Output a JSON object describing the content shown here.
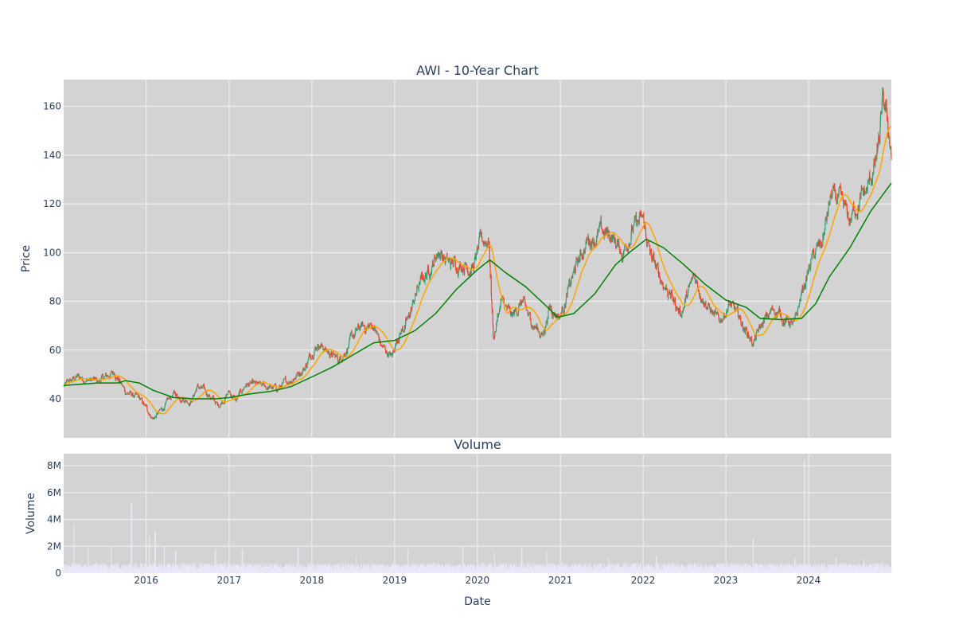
{
  "colors": {
    "plot_bg": "#d3d3d3",
    "grid": "#f2f3f6",
    "text": "#2a3f5f",
    "increasing": "#3d9970",
    "decreasing": "#f2452b",
    "short_ma": "#ffa500",
    "long_ma": "#008000",
    "volume": "#e8e8f8"
  },
  "chart_data": [
    {
      "type": "candlestick",
      "title": "AWI - 10-Year Chart",
      "ylabel": "Price",
      "xlabel": "",
      "xlim": [
        "2015-01-02",
        "2024-12-31"
      ],
      "ylim": [
        24,
        171
      ],
      "yticks": [
        40,
        60,
        80,
        100,
        120,
        140,
        160
      ],
      "ytick_labels": [
        "40",
        "60",
        "80",
        "100",
        "120",
        "140",
        "160"
      ],
      "grid": true,
      "close_keypoints": [
        [
          "2015-01-02",
          45
        ],
        [
          "2015-03-01",
          49
        ],
        [
          "2015-06-01",
          47
        ],
        [
          "2015-08-15",
          51
        ],
        [
          "2015-10-01",
          43
        ],
        [
          "2015-12-01",
          40
        ],
        [
          "2016-02-01",
          32
        ],
        [
          "2016-03-15",
          36
        ],
        [
          "2016-05-01",
          42
        ],
        [
          "2016-07-15",
          39
        ],
        [
          "2016-08-15",
          45
        ],
        [
          "2016-10-01",
          42
        ],
        [
          "2016-11-15",
          37
        ],
        [
          "2017-01-01",
          43
        ],
        [
          "2017-02-01",
          39
        ],
        [
          "2017-03-15",
          46
        ],
        [
          "2017-06-01",
          45
        ],
        [
          "2017-08-01",
          44
        ],
        [
          "2017-10-01",
          48
        ],
        [
          "2017-12-01",
          53
        ],
        [
          "2018-01-10",
          61
        ],
        [
          "2018-02-01",
          63
        ],
        [
          "2018-03-15",
          59
        ],
        [
          "2018-05-01",
          56
        ],
        [
          "2018-07-01",
          65
        ],
        [
          "2018-08-01",
          69
        ],
        [
          "2018-10-01",
          70
        ],
        [
          "2018-11-01",
          62
        ],
        [
          "2018-12-20",
          57
        ],
        [
          "2019-01-15",
          66
        ],
        [
          "2019-03-01",
          72
        ],
        [
          "2019-04-15",
          86
        ],
        [
          "2019-06-01",
          93
        ],
        [
          "2019-07-15",
          101
        ],
        [
          "2019-09-01",
          95
        ],
        [
          "2019-11-01",
          96
        ],
        [
          "2019-12-15",
          94
        ],
        [
          "2020-01-15",
          104
        ],
        [
          "2020-02-20",
          106
        ],
        [
          "2020-03-12",
          65
        ],
        [
          "2020-04-15",
          80
        ],
        [
          "2020-06-01",
          73
        ],
        [
          "2020-07-15",
          80
        ],
        [
          "2020-08-15",
          73
        ],
        [
          "2020-10-15",
          66
        ],
        [
          "2020-11-15",
          78
        ],
        [
          "2020-12-31",
          74
        ],
        [
          "2021-02-01",
          83
        ],
        [
          "2021-03-15",
          95
        ],
        [
          "2021-05-01",
          105
        ],
        [
          "2021-07-01",
          108
        ],
        [
          "2021-08-15",
          107
        ],
        [
          "2021-10-01",
          100
        ],
        [
          "2021-11-15",
          110
        ],
        [
          "2022-01-01",
          113
        ],
        [
          "2022-02-01",
          99
        ],
        [
          "2022-03-15",
          90
        ],
        [
          "2022-05-01",
          83
        ],
        [
          "2022-06-15",
          75
        ],
        [
          "2022-08-15",
          90
        ],
        [
          "2022-10-15",
          78
        ],
        [
          "2022-12-01",
          71
        ],
        [
          "2023-01-15",
          79
        ],
        [
          "2023-03-01",
          73
        ],
        [
          "2023-05-01",
          63
        ],
        [
          "2023-06-15",
          71
        ],
        [
          "2023-08-01",
          77
        ],
        [
          "2023-09-15",
          73
        ],
        [
          "2023-11-01",
          70
        ],
        [
          "2023-12-01",
          83
        ],
        [
          "2024-01-15",
          97
        ],
        [
          "2024-03-01",
          104
        ],
        [
          "2024-04-10",
          123
        ],
        [
          "2024-05-15",
          121
        ],
        [
          "2024-07-01",
          113
        ],
        [
          "2024-08-01",
          120
        ],
        [
          "2024-09-15",
          125
        ],
        [
          "2024-11-01",
          140
        ],
        [
          "2024-11-25",
          161
        ],
        [
          "2024-12-10",
          155
        ],
        [
          "2024-12-31",
          141
        ]
      ],
      "series": [
        {
          "style": "candlestick",
          "note_on_data": "close path follows close_keypoints"
        },
        {
          "style": "line",
          "color": "#ffa500",
          "smoothing": "short moving average"
        },
        {
          "style": "line",
          "color": "#008000",
          "smoothing": "long moving average",
          "values": [
            [
              "2015-01-02",
              45.5
            ],
            [
              "2015-06-01",
              46.5
            ],
            [
              "2015-09-01",
              46.5
            ],
            [
              "2015-10-01",
              47.5
            ],
            [
              "2015-12-01",
              46.5
            ],
            [
              "2016-02-01",
              43.5
            ],
            [
              "2016-05-01",
              40.5
            ],
            [
              "2016-08-01",
              40
            ],
            [
              "2016-11-01",
              40
            ],
            [
              "2017-01-01",
              40.5
            ],
            [
              "2017-04-01",
              42
            ],
            [
              "2017-07-01",
              43
            ],
            [
              "2017-10-01",
              45
            ],
            [
              "2018-01-01",
              49
            ],
            [
              "2018-04-01",
              53
            ],
            [
              "2018-07-01",
              58
            ],
            [
              "2018-10-01",
              63
            ],
            [
              "2019-01-01",
              64
            ],
            [
              "2019-04-01",
              68
            ],
            [
              "2019-07-01",
              75
            ],
            [
              "2019-10-01",
              85
            ],
            [
              "2020-01-01",
              93
            ],
            [
              "2020-02-25",
              97
            ],
            [
              "2020-05-01",
              92
            ],
            [
              "2020-08-01",
              86
            ],
            [
              "2020-11-01",
              78
            ],
            [
              "2020-12-20",
              73.5
            ],
            [
              "2021-03-01",
              75
            ],
            [
              "2021-06-01",
              83
            ],
            [
              "2021-09-01",
              95
            ],
            [
              "2021-11-01",
              100
            ],
            [
              "2022-01-15",
              105.5
            ],
            [
              "2022-04-01",
              102
            ],
            [
              "2022-07-01",
              95
            ],
            [
              "2022-10-01",
              87
            ],
            [
              "2023-01-01",
              80.5
            ],
            [
              "2023-04-01",
              77.5
            ],
            [
              "2023-06-01",
              73
            ],
            [
              "2023-09-01",
              72.5
            ],
            [
              "2023-12-01",
              73
            ],
            [
              "2024-02-01",
              79
            ],
            [
              "2024-04-01",
              90
            ],
            [
              "2024-07-01",
              102
            ],
            [
              "2024-10-01",
              117
            ],
            [
              "2024-12-31",
              128.5
            ]
          ]
        }
      ]
    },
    {
      "type": "bar",
      "title": "Volume",
      "xlabel": "Date",
      "ylabel": "Volume",
      "xlim": [
        "2015-01-02",
        "2024-12-31"
      ],
      "ylim": [
        0,
        8900000
      ],
      "yticks": [
        0,
        2000000,
        4000000,
        6000000,
        8000000
      ],
      "ytick_labels": [
        "0",
        "2M",
        "4M",
        "6M",
        "8M"
      ],
      "xticks": [
        "2016-01-01",
        "2017-01-01",
        "2018-01-01",
        "2019-01-01",
        "2020-01-01",
        "2021-01-01",
        "2022-01-01",
        "2023-01-01",
        "2024-01-01"
      ],
      "xtick_labels": [
        "2016",
        "2017",
        "2018",
        "2019",
        "2020",
        "2021",
        "2022",
        "2023",
        "2024"
      ],
      "grid": true,
      "typical_volume": 500000,
      "volume_spikes": [
        [
          "2015-02-15",
          3700000
        ],
        [
          "2015-04-20",
          1900000
        ],
        [
          "2015-08-01",
          2000000
        ],
        [
          "2015-10-28",
          5200000
        ],
        [
          "2016-01-15",
          2800000
        ],
        [
          "2016-02-10",
          3100000
        ],
        [
          "2016-03-20",
          2000000
        ],
        [
          "2016-05-10",
          1700000
        ],
        [
          "2016-11-01",
          1800000
        ],
        [
          "2017-02-28",
          1800000
        ],
        [
          "2017-11-01",
          1900000
        ],
        [
          "2018-07-15",
          1300000
        ],
        [
          "2019-03-01",
          1800000
        ],
        [
          "2019-10-28",
          2000000
        ],
        [
          "2020-03-15",
          1500000
        ],
        [
          "2020-07-15",
          1900000
        ],
        [
          "2020-11-01",
          1600000
        ],
        [
          "2021-08-01",
          1200000
        ],
        [
          "2022-03-01",
          1300000
        ],
        [
          "2023-05-01",
          2600000
        ],
        [
          "2023-11-01",
          1100000
        ],
        [
          "2023-12-15",
          8400000
        ],
        [
          "2024-05-01",
          1200000
        ],
        [
          "2024-09-01",
          1000000
        ]
      ]
    }
  ]
}
